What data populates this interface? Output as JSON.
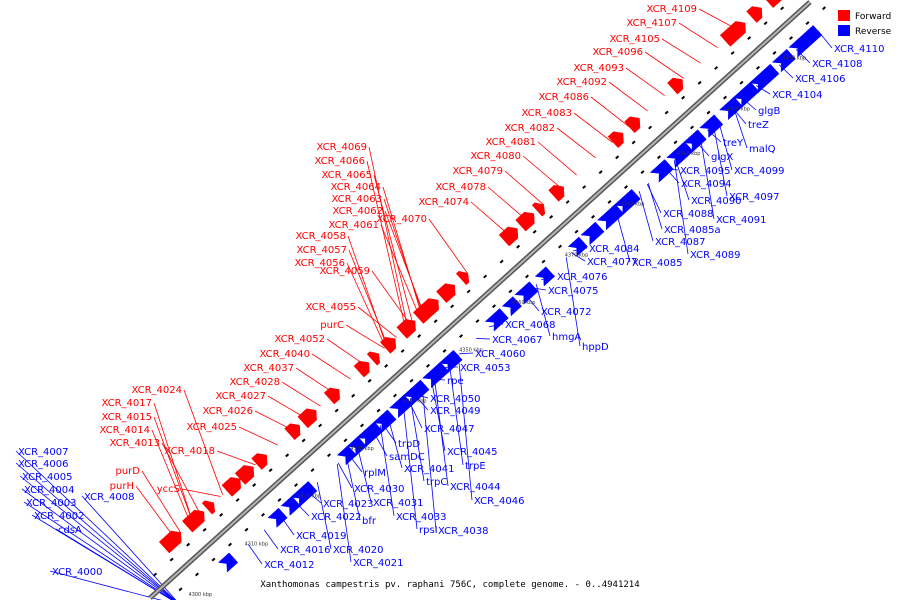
{
  "caption": "Xanthomonas campestris pv. raphani 756C, complete genome. - 0..4941214",
  "legend": [
    {
      "label": "Forward",
      "color": "#ff0000"
    },
    {
      "label": "Reverse",
      "color": "#0000ff"
    }
  ],
  "colors": {
    "forward": "#ff0000",
    "reverse": "#0000ff",
    "axis": "#808080"
  },
  "ticks": [
    "4300 kbp",
    "4310 kbp",
    "4320 kbp",
    "4330 kbp",
    "4340 kbp",
    "4350 kbp",
    "4360 kbp",
    "4370 kbp",
    "4380 kbp",
    "4390 kbp",
    "4400 kbp",
    "4410 kbp"
  ],
  "forward_labels": [
    "XCR_4109",
    "XCR_4107",
    "XCR_4105",
    "XCR_4096",
    "XCR_4093",
    "XCR_4092",
    "XCR_4086",
    "XCR_4083",
    "XCR_4082",
    "XCR_4081",
    "XCR_4080",
    "XCR_4079",
    "XCR_4078",
    "XCR_4074",
    "XCR_4069",
    "XCR_4066",
    "XCR_4065",
    "XCR_4064",
    "XCR_4063",
    "XCR_4062",
    "XCR_4061",
    "XCR_4070",
    "XCR_4058",
    "XCR_4057",
    "XCR_4056",
    "XCR_4059",
    "XCR_4055",
    "purC",
    "XCR_4052",
    "XCR_4040",
    "XCR_4037",
    "XCR_4028",
    "XCR_4027",
    "XCR_4024",
    "XCR_4026",
    "XCR_4017",
    "XCR_4025",
    "XCR_4015",
    "XCR_4014",
    "XCR_4013",
    "XCR_4018",
    "purD",
    "purH",
    "yccS"
  ],
  "reverse_labels": [
    "XCR_4110",
    "XCR_4108",
    "XCR_4106",
    "XCR_4104",
    "glgB",
    "treZ",
    "treY",
    "malQ",
    "glgX",
    "XCR_4095",
    "XCR_4099",
    "XCR_4094",
    "XCR_4097",
    "XCR_4090",
    "XCR_4088",
    "XCR_4091",
    "XCR_4085a",
    "XCR_4087",
    "XCR_4084",
    "XCR_4089",
    "XCR_4077",
    "XCR_4085",
    "XCR_4076",
    "XCR_4075",
    "XCR_4072",
    "XCR_4068",
    "XCR_4067",
    "hmgA",
    "hppD",
    "XCR_4060",
    "XCR_4053",
    "rpe",
    "XCR_4050",
    "XCR_4049",
    "XCR_4047",
    "trpD",
    "XCR_4045",
    "samDC",
    "trpE",
    "rplM",
    "XCR_4041",
    "trpC",
    "XCR_4044",
    "XCR_4030",
    "XCR_4046",
    "XCR_4023",
    "XCR_4031",
    "XCR_4022",
    "bfr",
    "XCR_4033",
    "rpsI",
    "XCR_4038",
    "XCR_4019",
    "XCR_4016",
    "XCR_4020",
    "XCR_4012",
    "XCR_4021",
    "XCR_4007",
    "XCR_4006",
    "XCR_4005",
    "XCR_4004",
    "XCR_4008",
    "XCR_4003",
    "XCR_4002",
    "cdsA",
    "XCR_4000"
  ]
}
